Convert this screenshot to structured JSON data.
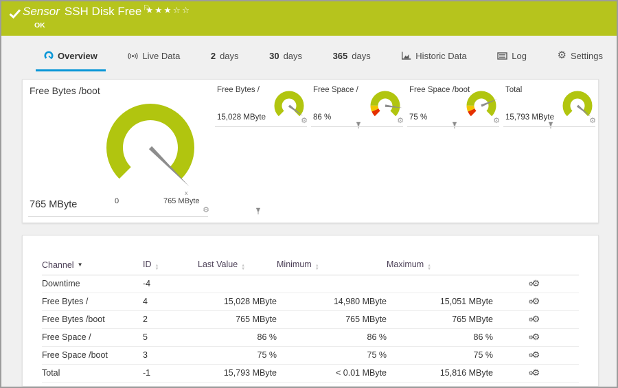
{
  "colors": {
    "header_green": "#b6c41d",
    "gauge_green": "#b1c50f",
    "accent_blue": "#0896d7",
    "warn_yellow": "#f2c500",
    "error_red": "#e53000"
  },
  "header": {
    "kind_label": "Sensor",
    "sensor_name": "SSH Disk Free",
    "status_text": "OK",
    "rating_filled": 3,
    "rating_total": 5
  },
  "tabs": [
    {
      "label": "Overview",
      "active": true
    },
    {
      "label": "Live Data"
    },
    {
      "num": "2",
      "label": "days"
    },
    {
      "num": "30",
      "label": "days"
    },
    {
      "num": "365",
      "label": "days"
    },
    {
      "label": "Historic Data"
    },
    {
      "label": "Log"
    },
    {
      "label": "Settings"
    }
  ],
  "gauges": {
    "main": {
      "title": "Free Bytes /boot",
      "value": "765 MByte",
      "scale_min": "0",
      "scale_max": "765 MByte",
      "peak_marker": "x",
      "percent": 100,
      "segments": [
        {
          "from": 0,
          "to": 100,
          "color": "#b1c50f"
        }
      ]
    },
    "small": [
      {
        "title": "Free Bytes /",
        "value": "15,028 MByte",
        "percent": 97,
        "segments": [
          {
            "from": 0,
            "to": 100,
            "color": "#b1c50f"
          }
        ]
      },
      {
        "title": "Free Space /",
        "value": "86 %",
        "percent": 86,
        "segments": [
          {
            "from": 0,
            "to": 8,
            "color": "#e53000"
          },
          {
            "from": 8,
            "to": 17,
            "color": "#f2c500"
          },
          {
            "from": 17,
            "to": 100,
            "color": "#b1c50f"
          }
        ]
      },
      {
        "title": "Free Space /boot",
        "value": "75 %",
        "percent": 75,
        "segments": [
          {
            "from": 0,
            "to": 8,
            "color": "#e53000"
          },
          {
            "from": 8,
            "to": 17,
            "color": "#f2c500"
          },
          {
            "from": 17,
            "to": 100,
            "color": "#b1c50f"
          }
        ]
      },
      {
        "title": "Total",
        "value": "15,793 MByte",
        "percent": 98,
        "segments": [
          {
            "from": 0,
            "to": 100,
            "color": "#b1c50f"
          }
        ]
      }
    ]
  },
  "table": {
    "columns": {
      "channel": "Channel",
      "id": "ID",
      "last": "Last Value",
      "min": "Minimum",
      "max": "Maximum"
    },
    "rows": [
      {
        "channel": "Downtime",
        "id": "-4",
        "last": "",
        "min": "",
        "max": ""
      },
      {
        "channel": "Free Bytes /",
        "id": "4",
        "last": "15,028 MByte",
        "min": "14,980 MByte",
        "max": "15,051 MByte"
      },
      {
        "channel": "Free Bytes /boot",
        "id": "2",
        "last": "765 MByte",
        "min": "765 MByte",
        "max": "765 MByte"
      },
      {
        "channel": "Free Space /",
        "id": "5",
        "last": "86 %",
        "min": "86 %",
        "max": "86 %"
      },
      {
        "channel": "Free Space /boot",
        "id": "3",
        "last": "75 %",
        "min": "75 %",
        "max": "75 %"
      },
      {
        "channel": "Total",
        "id": "-1",
        "last": "15,793 MByte",
        "min": "< 0.01 MByte",
        "max": "15,816 MByte"
      }
    ]
  }
}
